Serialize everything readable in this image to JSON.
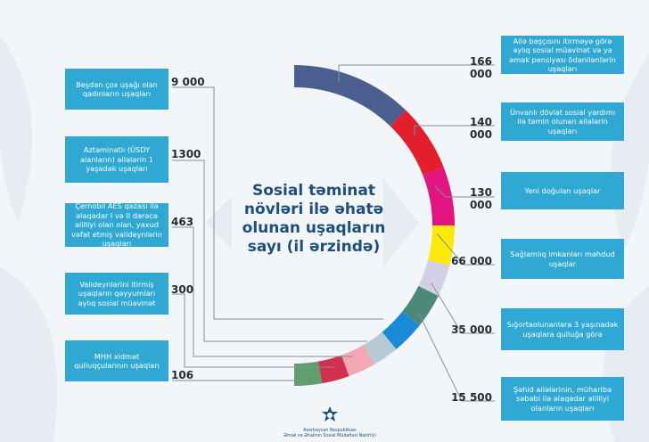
{
  "chart_data": {
    "type": "donut-semicircle",
    "title": "Sosial təminat növləri ilə əhatə olunan uşaqların sayı (il ərzində)",
    "segments": [
      {
        "label": "Ailə başçısını itirməyə görə aylıq sosial müavinət və ya əmək pensiyası ödənilənlərin uşaqları",
        "value": 166000,
        "value_label": "166 000",
        "color": "#4a5f8f",
        "side": "right"
      },
      {
        "label": "Ünvanlı dövlət sosial yardımı ilə təmin olunan ailələrin uşaqları",
        "value": 140000,
        "value_label": "140 000",
        "color": "#e31e2d",
        "side": "right"
      },
      {
        "label": "Yeni doğulan uşaqlar",
        "value": 130000,
        "value_label": "130 000",
        "color": "#e2147f",
        "side": "right"
      },
      {
        "label": "Sağlamlıq imkanları məhdud uşaqlar",
        "value": 66000,
        "value_label": "66 000",
        "color": "#fbe90a",
        "side": "right"
      },
      {
        "label": "Sığortaolunanlara 3 yaşınadək uşaqlara qulluğa görə",
        "value": 35000,
        "value_label": "35 000",
        "color": "#d2cfe6",
        "side": "right"
      },
      {
        "label": "Şəhid ailələrinin, müharibə səbəbi ilə əlaqədar əlilliyi olanların uşaqları",
        "value": 15500,
        "value_label": "15 500",
        "color": "#4b8a78",
        "side": "right"
      },
      {
        "label": "Beşdən çox uşağı olan qadınların uşaqları",
        "value": 9000,
        "value_label": "9 000",
        "color": "#1b8ad6",
        "side": "left"
      },
      {
        "label": "Aztəminatlı (ÜSDY alanların) ailələrin 1 yaşadək uşaqları",
        "value": 1300,
        "value_label": "1300",
        "color": "#b8c9d6",
        "side": "left"
      },
      {
        "label": "Çernobıl AES qəzası ilə əlaqədar I və II dərəcə əlilliyi olan olan, yaxud vəfat etmiş valideynlərin uşaqları",
        "value": 463,
        "value_label": "463",
        "color": "#f2a7b2",
        "side": "left"
      },
      {
        "label": "Valideynlərini itirmiş uşaqların qəyyumları aylıq sosial müavinət",
        "value": 300,
        "value_label": "300",
        "color": "#cf3250",
        "side": "left"
      },
      {
        "label": "MHH xidmət qulluqçularının uşaqları",
        "value": 106,
        "value_label": "106",
        "color": "#5f9f6d",
        "side": "left"
      }
    ]
  },
  "footer": {
    "org_line1": "Azərbaycan Respublikası",
    "org_line2": "Əmək və Əhalinin Sosial Müdafiəsi Nazirliyi"
  },
  "colors": {
    "box": "#2fa8d3",
    "title": "#1f4d7e",
    "background": "#f3f6f9"
  }
}
